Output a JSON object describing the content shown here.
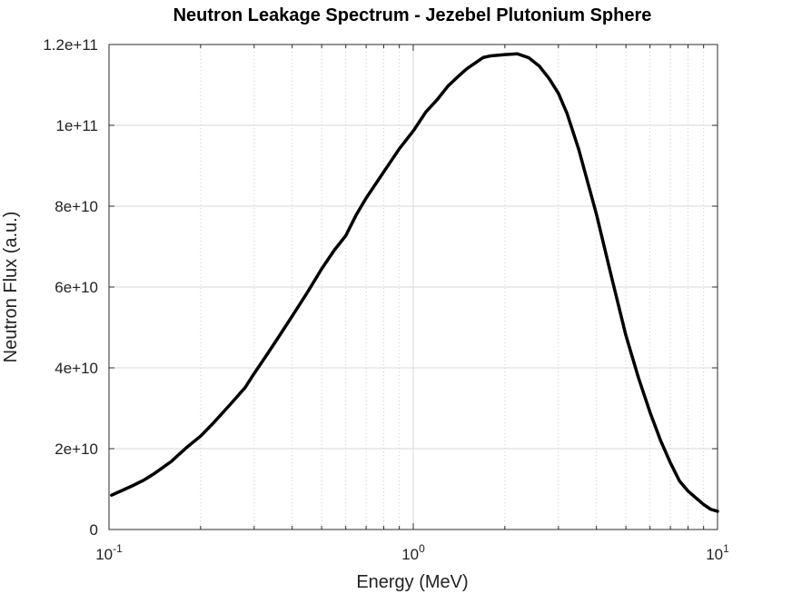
{
  "chart_data": {
    "type": "line",
    "title": "Neutron Leakage Spectrum - Jezebel Plutonium Sphere",
    "xlabel": "Energy (MeV)",
    "ylabel": "Neutron Flux (a.u.)",
    "xscale": "log",
    "xlim": [
      0.1,
      10
    ],
    "ylim": [
      0,
      120000000000
    ],
    "grid": true,
    "x_tick_labels": [
      {
        "value": 0.1,
        "base": "10",
        "exp": "-1"
      },
      {
        "value": 1,
        "base": "10",
        "exp": "0"
      },
      {
        "value": 10,
        "base": "10",
        "exp": "1"
      }
    ],
    "y_ticks": [
      0,
      20000000000,
      40000000000,
      60000000000,
      80000000000,
      100000000000,
      120000000000
    ],
    "y_tick_labels": [
      "0",
      "2e+10",
      "4e+10",
      "6e+10",
      "8e+10",
      "1e+11",
      "1.2e+11"
    ],
    "series": [
      {
        "color": "#000000",
        "x": [
          0.102,
          0.11,
          0.12,
          0.13,
          0.14,
          0.15,
          0.16,
          0.17,
          0.18,
          0.2,
          0.22,
          0.25,
          0.28,
          0.3,
          0.33,
          0.36,
          0.4,
          0.45,
          0.5,
          0.55,
          0.6,
          0.65,
          0.7,
          0.8,
          0.9,
          1.0,
          1.1,
          1.2,
          1.3,
          1.4,
          1.5,
          1.7,
          1.8,
          2.0,
          2.2,
          2.4,
          2.6,
          2.8,
          3.0,
          3.2,
          3.5,
          4.0,
          4.5,
          5.0,
          5.5,
          6.0,
          6.5,
          7.0,
          7.5,
          8.0,
          8.5,
          9.0,
          9.5,
          10.0
        ],
        "y": [
          8500000000,
          9600000000,
          10900000000,
          12200000000,
          13700000000,
          15300000000,
          16800000000,
          18600000000,
          20300000000,
          23100000000,
          26300000000,
          30900000000,
          35100000000,
          38600000000,
          43200000000,
          47500000000,
          52800000000,
          58800000000,
          64500000000,
          69100000000,
          72700000000,
          77900000000,
          82000000000,
          88500000000,
          94200000000,
          98600000000,
          103300000000,
          106400000000,
          109700000000,
          112000000000,
          114000000000,
          116800000000,
          117200000000,
          117500000000,
          117700000000,
          116700000000,
          114600000000,
          111500000000,
          107900000000,
          103000000000,
          94000000000,
          78000000000,
          62000000000,
          48000000000,
          37500000000,
          29000000000,
          22000000000,
          16500000000,
          12000000000,
          9500000000,
          7800000000,
          6200000000,
          5000000000,
          4500000000
        ]
      }
    ]
  }
}
